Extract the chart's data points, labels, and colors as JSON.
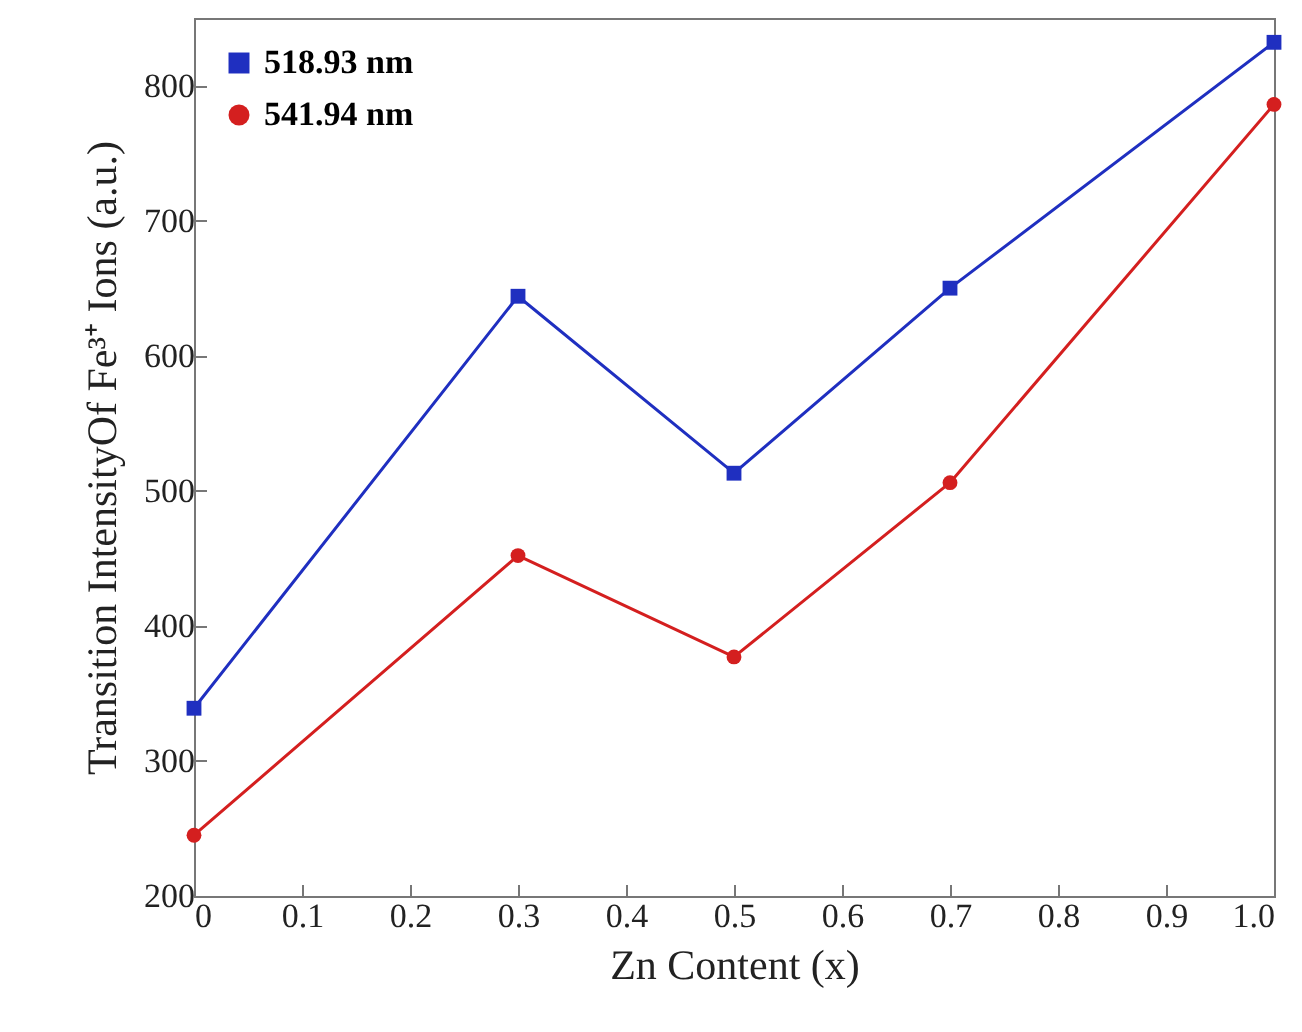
{
  "chart_data": {
    "type": "line",
    "xlabel": "Zn Content (x)",
    "ylabel": "Transition IntensityOf Fe³⁺ Ions (a.u.)",
    "x": [
      0,
      0.3,
      0.5,
      0.7,
      1.0
    ],
    "series": [
      {
        "name": "518.93 nm",
        "color": "#1f2fc0",
        "marker": "square",
        "values": [
          339,
          644,
          513,
          650,
          832
        ]
      },
      {
        "name": "541.94 nm",
        "color": "#d41f1f",
        "marker": "circle",
        "values": [
          245,
          452,
          377,
          506,
          786
        ]
      }
    ],
    "xlim": [
      0,
      1.0
    ],
    "ylim": [
      200,
      850
    ],
    "xticks": [
      {
        "value": 0,
        "label": "0"
      },
      0.1,
      0.2,
      0.3,
      0.4,
      0.5,
      0.6,
      0.7,
      0.8,
      0.9,
      {
        "value": 1,
        "label": "1.0"
      }
    ],
    "yticks": [
      200,
      300,
      400,
      500,
      600,
      700,
      800
    ],
    "legend": "top left",
    "grid": false,
    "line_style": "solid"
  }
}
